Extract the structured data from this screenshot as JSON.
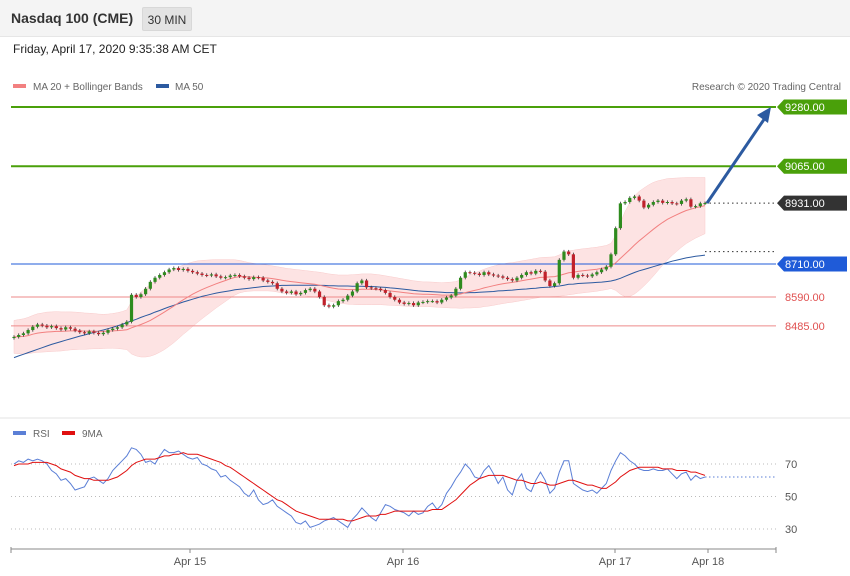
{
  "header": {
    "title": "Nasdaq 100 (CME)",
    "interval": "30 MIN",
    "datetime": "Friday, April 17, 2020 9:35:38 AM CET"
  },
  "legend": {
    "ma20": "MA 20 + Bollinger Bands",
    "ma50": "MA 50",
    "copyright": "Research © 2020 Trading Central",
    "rsi": "RSI",
    "rsi_ma": "9MA"
  },
  "colors": {
    "ma20": "#f28080",
    "ma50": "#2c5aa0",
    "band_fill": "#fde2e2",
    "green_level": "#4aa00a",
    "blue_level": "#1f5bd8",
    "red_level": "#e05050",
    "current_price": "#333333",
    "rsi": "#5b7fd6",
    "rsi_ma": "#e01010",
    "up_candle": "#2e8b1e",
    "down_candle": "#c0212b",
    "arrow": "#2c5aa0"
  },
  "chart_data": [
    {
      "type": "candlestick",
      "x_ticks": [
        "Apr 15",
        "Apr 16",
        "Apr 17",
        "Apr 18"
      ],
      "ylim": [
        8330,
        9300
      ],
      "levels": [
        {
          "value": 9280.0,
          "label": "9280.00",
          "kind": "resistance",
          "style": "green-flag"
        },
        {
          "value": 9065.0,
          "label": "9065.00",
          "kind": "resistance",
          "style": "green-flag"
        },
        {
          "value": 8931.0,
          "label": "8931.00",
          "kind": "last-price",
          "style": "dark-flag"
        },
        {
          "value": 8710.0,
          "label": "8710.00",
          "kind": "pivot",
          "style": "blue-flag"
        },
        {
          "value": 8590.0,
          "label": "8590.00",
          "kind": "support",
          "style": "red-text"
        },
        {
          "value": 8485.0,
          "label": "8485.00",
          "kind": "support",
          "style": "red-text"
        }
      ],
      "close": [
        8445,
        8452,
        8458,
        8470,
        8482,
        8490,
        8486,
        8480,
        8484,
        8477,
        8472,
        8480,
        8475,
        8468,
        8462,
        8458,
        8465,
        8460,
        8455,
        8460,
        8470,
        8475,
        8480,
        8490,
        8500,
        8598,
        8590,
        8600,
        8620,
        8645,
        8660,
        8670,
        8680,
        8690,
        8695,
        8688,
        8692,
        8685,
        8680,
        8675,
        8670,
        8668,
        8672,
        8665,
        8660,
        8662,
        8668,
        8670,
        8665,
        8660,
        8655,
        8662,
        8660,
        8650,
        8645,
        8640,
        8620,
        8610,
        8605,
        8610,
        8600,
        8605,
        8615,
        8620,
        8610,
        8590,
        8560,
        8555,
        8560,
        8575,
        8580,
        8595,
        8610,
        8640,
        8650,
        8625,
        8622,
        8620,
        8615,
        8605,
        8590,
        8580,
        8570,
        8565,
        8568,
        8560,
        8570,
        8572,
        8575,
        8575,
        8570,
        8580,
        8588,
        8595,
        8620,
        8660,
        8680,
        8678,
        8675,
        8670,
        8680,
        8672,
        8668,
        8665,
        8660,
        8655,
        8650,
        8660,
        8670,
        8680,
        8675,
        8685,
        8682,
        8650,
        8630,
        8640,
        8725,
        8755,
        8745,
        8660,
        8670,
        8668,
        8665,
        8672,
        8680,
        8690,
        8700,
        8745,
        8840,
        8930,
        8935,
        8950,
        8955,
        8940,
        8915,
        8925,
        8935,
        8940,
        8932,
        8935,
        8930,
        8928,
        8940,
        8945,
        8918,
        8920,
        8930,
        8931
      ],
      "ma20": [
        8445,
        8446,
        8447,
        8450,
        8455,
        8459,
        8461,
        8463,
        8464,
        8465,
        8465,
        8466,
        8467,
        8467,
        8467,
        8466,
        8466,
        8466,
        8465,
        8465,
        8466,
        8467,
        8468,
        8469,
        8471,
        8478,
        8484,
        8490,
        8497,
        8505,
        8515,
        8525,
        8535,
        8546,
        8557,
        8569,
        8580,
        8590,
        8600,
        8609,
        8617,
        8624,
        8631,
        8638,
        8644,
        8650,
        8656,
        8661,
        8664,
        8664,
        8663,
        8662,
        8661,
        8660,
        8659,
        8657,
        8654,
        8651,
        8648,
        8646,
        8644,
        8642,
        8640,
        8638,
        8636,
        8633,
        8629,
        8625,
        8622,
        8619,
        8618,
        8617,
        8617,
        8617,
        8618,
        8618,
        8618,
        8617,
        8616,
        8614,
        8612,
        8610,
        8608,
        8606,
        8604,
        8602,
        8601,
        8600,
        8600,
        8599,
        8598,
        8597,
        8597,
        8597,
        8598,
        8601,
        8606,
        8610,
        8614,
        8618,
        8623,
        8627,
        8631,
        8635,
        8638,
        8641,
        8643,
        8646,
        8649,
        8652,
        8655,
        8658,
        8661,
        8662,
        8663,
        8664,
        8668,
        8673,
        8678,
        8680,
        8683,
        8685,
        8687,
        8689,
        8691,
        8694,
        8697,
        8703,
        8714,
        8730,
        8746,
        8762,
        8779,
        8794,
        8808,
        8822,
        8836,
        8849,
        8861,
        8872,
        8881,
        8889,
        8897,
        8904,
        8909,
        8914,
        8918,
        8922
      ],
      "ma50": [
        8370,
        8376,
        8382,
        8388,
        8394,
        8400,
        8406,
        8412,
        8418,
        8423,
        8428,
        8433,
        8438,
        8443,
        8448,
        8452,
        8457,
        8461,
        8466,
        8470,
        8475,
        8480,
        8485,
        8491,
        8497,
        8503,
        8509,
        8516,
        8522,
        8528,
        8535,
        8541,
        8548,
        8554,
        8560,
        8566,
        8572,
        8577,
        8582,
        8587,
        8592,
        8596,
        8600,
        8604,
        8607,
        8610,
        8613,
        8616,
        8618,
        8620,
        8622,
        8624,
        8626,
        8628,
        8629,
        8630,
        8631,
        8632,
        8632,
        8633,
        8633,
        8633,
        8633,
        8633,
        8633,
        8632,
        8632,
        8631,
        8631,
        8630,
        8630,
        8630,
        8629,
        8629,
        8629,
        8628,
        8628,
        8627,
        8626,
        8625,
        8623,
        8622,
        8620,
        8618,
        8616,
        8614,
        8612,
        8611,
        8610,
        8609,
        8608,
        8607,
        8606,
        8606,
        8605,
        8605,
        8605,
        8606,
        8606,
        8607,
        8608,
        8609,
        8610,
        8612,
        8613,
        8614,
        8615,
        8617,
        8618,
        8619,
        8621,
        8622,
        8624,
        8625,
        8626,
        8628,
        8630,
        8633,
        8636,
        8637,
        8639,
        8640,
        8641,
        8642,
        8643,
        8644,
        8646,
        8648,
        8652,
        8658,
        8665,
        8672,
        8679,
        8685,
        8690,
        8695,
        8700,
        8705,
        8710,
        8715,
        8720,
        8724,
        8728,
        8732,
        8735,
        8738,
        8740,
        8742
      ],
      "band_width": [
        60,
        62,
        64,
        66,
        68,
        70,
        71,
        72,
        72,
        72,
        71,
        70,
        69,
        68,
        67,
        66,
        65,
        64,
        63,
        62,
        62,
        63,
        65,
        68,
        72,
        95,
        108,
        118,
        125,
        130,
        134,
        136,
        136,
        135,
        133,
        130,
        126,
        122,
        117,
        112,
        106,
        100,
        94,
        88,
        82,
        76,
        70,
        64,
        59,
        55,
        52,
        50,
        49,
        48,
        47,
        46,
        46,
        46,
        46,
        46,
        46,
        46,
        46,
        46,
        46,
        47,
        48,
        49,
        50,
        51,
        52,
        53,
        54,
        55,
        56,
        56,
        56,
        55,
        54,
        53,
        52,
        51,
        50,
        49,
        48,
        47,
        46,
        45,
        45,
        45,
        45,
        45,
        46,
        47,
        48,
        52,
        56,
        60,
        63,
        66,
        68,
        70,
        71,
        72,
        72,
        72,
        72,
        72,
        72,
        72,
        72,
        72,
        72,
        72,
        72,
        72,
        75,
        78,
        80,
        80,
        80,
        80,
        80,
        80,
        80,
        80,
        80,
        82,
        100,
        130,
        155,
        170,
        178,
        180,
        178,
        175,
        170,
        163,
        155,
        148,
        140,
        133,
        126,
        120,
        115,
        110,
        106,
        102
      ]
    },
    {
      "type": "line",
      "name": "RSI",
      "x_ticks": [
        "Apr 15",
        "Apr 16",
        "Apr 17",
        "Apr 18"
      ],
      "ylim": [
        20,
        88
      ],
      "yticks": [
        30,
        50,
        70
      ],
      "rsi": [
        70,
        72,
        71,
        73,
        72,
        73,
        72,
        70,
        66,
        64,
        60,
        61,
        58,
        54,
        55,
        56,
        61,
        62,
        60,
        58,
        61,
        66,
        69,
        72,
        75,
        80,
        79,
        76,
        71,
        72,
        70,
        75,
        79,
        77,
        77,
        78,
        76,
        74,
        73,
        74,
        70,
        69,
        67,
        66,
        62,
        63,
        60,
        58,
        56,
        52,
        50,
        54,
        48,
        45,
        46,
        48,
        44,
        42,
        40,
        38,
        34,
        33,
        35,
        31,
        32,
        33,
        35,
        36,
        37,
        35,
        33,
        31,
        36,
        39,
        43,
        40,
        37,
        35,
        40,
        45,
        44,
        42,
        41,
        40,
        38,
        41,
        39,
        40,
        44,
        46,
        42,
        45,
        52,
        56,
        61,
        65,
        70,
        67,
        62,
        61,
        66,
        69,
        64,
        58,
        62,
        54,
        51,
        60,
        64,
        55,
        53,
        60,
        65,
        60,
        52,
        55,
        65,
        72,
        72,
        58,
        56,
        54,
        53,
        54,
        52,
        55,
        58,
        66,
        72,
        77,
        75,
        72,
        70,
        67,
        66,
        66,
        67,
        66,
        66,
        67,
        64,
        61,
        64,
        65,
        60,
        63,
        61,
        62
      ],
      "rsi_ma": [
        69,
        70,
        70,
        70,
        71,
        71,
        71,
        71,
        70,
        69,
        67,
        66,
        65,
        63,
        62,
        61,
        61,
        60,
        60,
        60,
        60,
        61,
        62,
        64,
        66,
        69,
        71,
        72,
        73,
        73,
        73,
        74,
        75,
        75,
        76,
        76,
        77,
        76,
        76,
        76,
        75,
        74,
        73,
        72,
        71,
        69,
        68,
        66,
        64,
        62,
        60,
        58,
        56,
        54,
        52,
        50,
        48,
        47,
        45,
        43,
        41,
        40,
        39,
        38,
        37,
        36,
        36,
        36,
        36,
        36,
        36,
        35,
        35,
        36,
        37,
        38,
        38,
        38,
        39,
        39,
        40,
        41,
        41,
        41,
        41,
        41,
        41,
        41,
        41,
        42,
        42,
        42,
        44,
        46,
        48,
        51,
        54,
        57,
        59,
        61,
        62,
        63,
        63,
        63,
        63,
        62,
        61,
        60,
        60,
        59,
        58,
        58,
        59,
        58,
        57,
        57,
        58,
        59,
        60,
        60,
        59,
        58,
        57,
        57,
        56,
        55,
        55,
        57,
        59,
        62,
        64,
        66,
        67,
        68,
        68,
        68,
        68,
        68,
        67,
        67,
        67,
        66,
        66,
        66,
        65,
        65,
        64,
        63
      ]
    }
  ]
}
